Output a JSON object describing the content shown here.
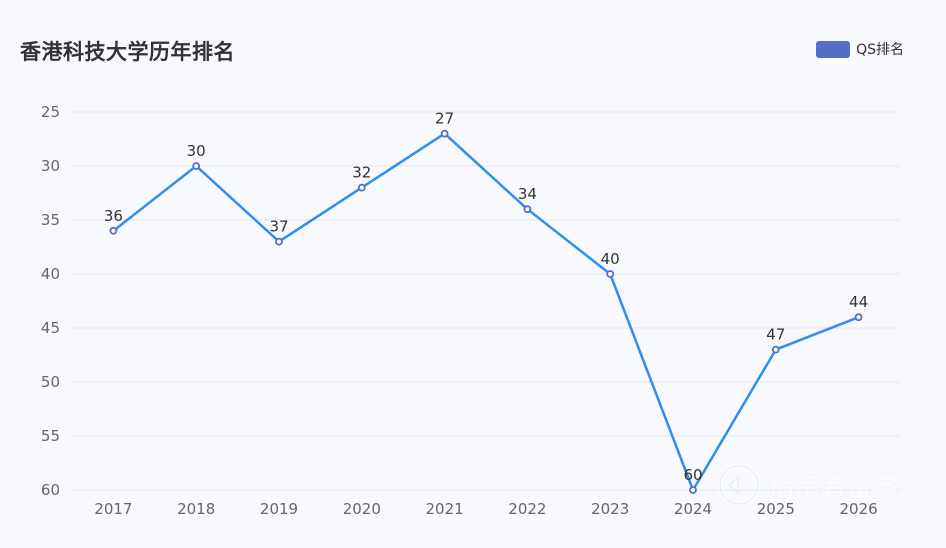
{
  "chart_data": {
    "type": "line",
    "title": "香港科技大学历年排名",
    "categories": [
      "2017",
      "2018",
      "2019",
      "2020",
      "2021",
      "2022",
      "2023",
      "2024",
      "2025",
      "2026"
    ],
    "series": [
      {
        "name": "QS排名",
        "values": [
          36,
          30,
          37,
          32,
          27,
          34,
          40,
          60,
          47,
          44
        ],
        "color": "#2f8ef0",
        "marker_color": "#5470c6"
      }
    ],
    "ylim": [
      25,
      60
    ],
    "y_inverted": true,
    "yticks": [
      25,
      30,
      35,
      40,
      45,
      50,
      55,
      60
    ],
    "grid": true,
    "legend_position": "top-right",
    "legend_color": "#5470c6",
    "xlabel": "",
    "ylabel": ""
  },
  "watermark": {
    "text": "指南者留学",
    "icon": "watermark-logo-icon"
  }
}
